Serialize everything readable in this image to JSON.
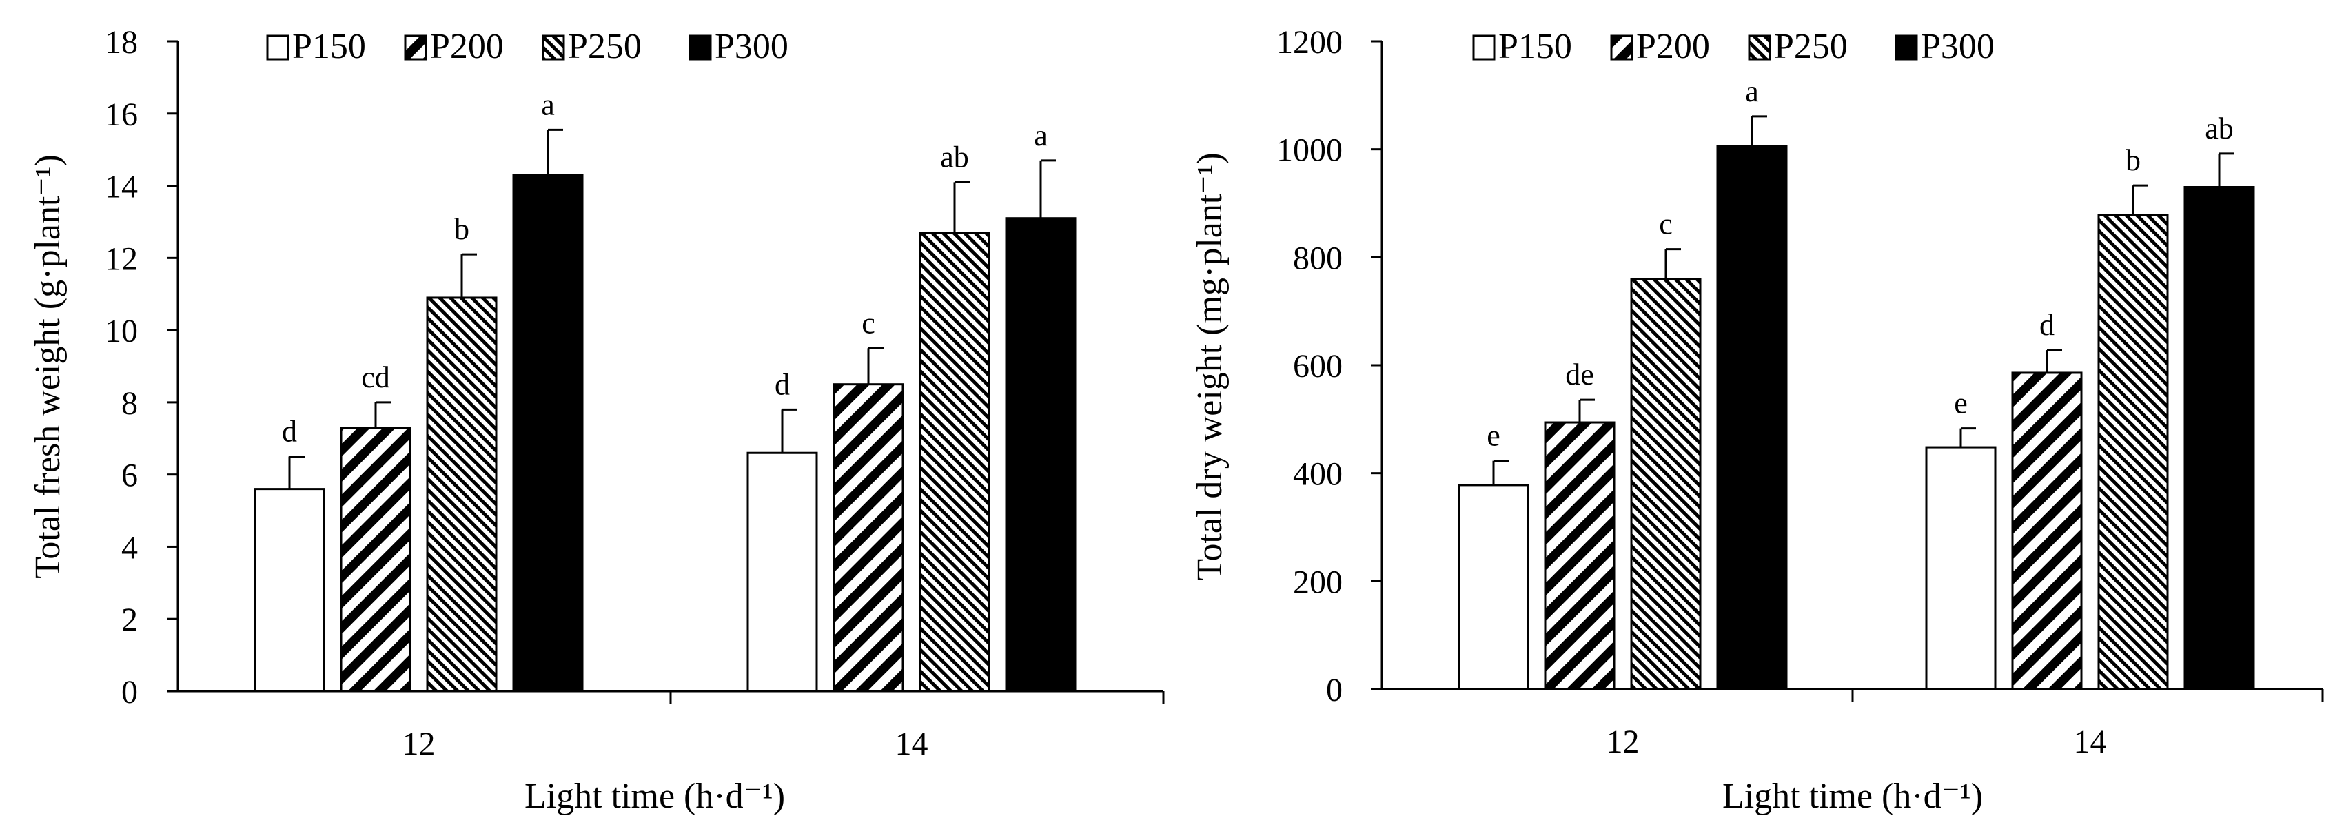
{
  "chart_data": [
    {
      "type": "bar",
      "title": "",
      "xlabel": "Light time  (h·d⁻¹)",
      "ylabel": "Total fresh weight (g·plant⁻¹)",
      "ylim": [
        0,
        18
      ],
      "yticks": [
        0,
        2,
        4,
        6,
        8,
        10,
        12,
        14,
        16,
        18
      ],
      "categories": [
        "12",
        "14"
      ],
      "legend_position": "top",
      "series": [
        {
          "name": "P150",
          "pattern": "white",
          "values": [
            5.6,
            6.6
          ],
          "errors": [
            0.9,
            1.2
          ],
          "labels": [
            "d",
            "d"
          ]
        },
        {
          "name": "P200",
          "pattern": "wide-diagonal-hatch",
          "values": [
            7.3,
            8.5
          ],
          "errors": [
            0.7,
            1.0
          ],
          "labels": [
            "cd",
            "c"
          ]
        },
        {
          "name": "P250",
          "pattern": "dense-diagonal-hatch",
          "values": [
            10.9,
            12.7
          ],
          "errors": [
            1.2,
            1.4
          ],
          "labels": [
            "b",
            "ab"
          ]
        },
        {
          "name": "P300",
          "pattern": "black",
          "values": [
            14.3,
            13.1
          ],
          "errors": [
            1.25,
            1.6
          ],
          "labels": [
            "a",
            "a"
          ]
        }
      ]
    },
    {
      "type": "bar",
      "title": "",
      "xlabel": "Light time  (h·d⁻¹)",
      "ylabel": "Total dry weight (mg·plant⁻¹)",
      "ylim": [
        0,
        1200
      ],
      "yticks": [
        0,
        200,
        400,
        600,
        800,
        1000,
        1200
      ],
      "categories": [
        "12",
        "14"
      ],
      "legend_position": "top",
      "series": [
        {
          "name": "P150",
          "pattern": "white",
          "values": [
            378,
            448
          ],
          "errors": [
            45,
            35
          ],
          "labels": [
            "e",
            "e"
          ]
        },
        {
          "name": "P200",
          "pattern": "wide-diagonal-hatch",
          "values": [
            494,
            586
          ],
          "errors": [
            42,
            42
          ],
          "labels": [
            "de",
            "d"
          ]
        },
        {
          "name": "P250",
          "pattern": "dense-diagonal-hatch",
          "values": [
            760,
            878
          ],
          "errors": [
            55,
            55
          ],
          "labels": [
            "c",
            "b"
          ]
        },
        {
          "name": "P300",
          "pattern": "black",
          "values": [
            1006,
            930
          ],
          "errors": [
            55,
            62
          ],
          "labels": [
            "a",
            "ab"
          ]
        }
      ]
    }
  ]
}
